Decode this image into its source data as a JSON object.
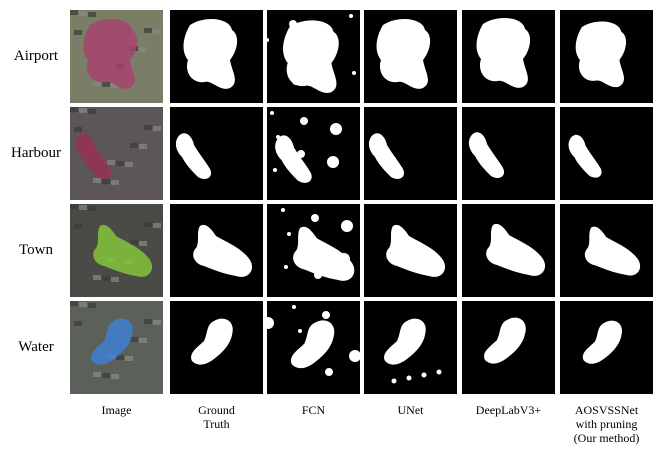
{
  "row_labels": [
    "Airport",
    "Harbour",
    "Town",
    "Water"
  ],
  "column_labels": [
    [
      "Image"
    ],
    [
      "Ground",
      "Truth"
    ],
    [
      "FCN"
    ],
    [
      "UNet"
    ],
    [
      "DeepLabV3+"
    ],
    [
      "AOSVSSNet",
      "with pruning",
      "(Our method)"
    ]
  ]
}
